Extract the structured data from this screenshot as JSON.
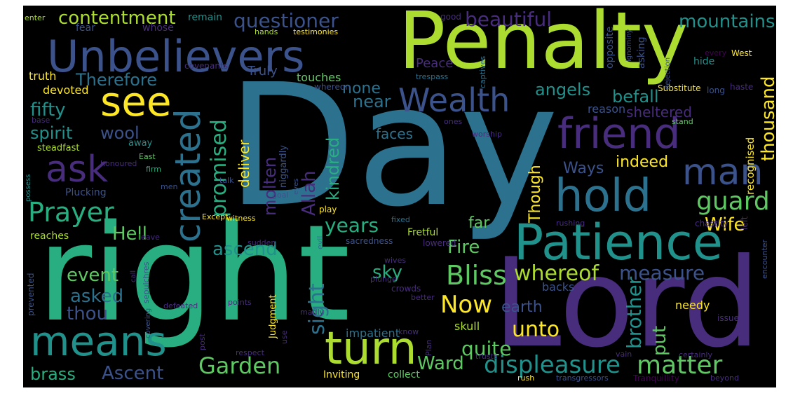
{
  "palette": {
    "background": "#000000",
    "frame": "#ffffff",
    "colors": [
      "#440154",
      "#472d7b",
      "#3b528b",
      "#2c728e",
      "#21918c",
      "#28ae80",
      "#5ec962",
      "#addc30",
      "#fde725"
    ]
  },
  "words": [
    "Day",
    "right",
    "Lord",
    "Penalty",
    "Unbelievers",
    "Patience",
    "hold",
    "friend",
    "turn",
    "means",
    "see",
    "ask",
    "Wealth",
    "created",
    "man",
    "Prayer",
    "displeasure",
    "matter",
    "Garden",
    "guard",
    "Bliss",
    "mountains",
    "thousand",
    "contentment",
    "questioner",
    "beautiful",
    "promised",
    "Allah",
    "Now",
    "whereof",
    "measure",
    "brother",
    "sight",
    "years",
    "quite",
    "unto",
    "Fire",
    "Hell",
    "ascend",
    "Ascent",
    "brass",
    "thou",
    "asked",
    "event",
    "sky",
    "earth",
    "put",
    "Ward",
    "fifty",
    "spirit",
    "wool",
    "angels",
    "befall",
    "sheltered",
    "none",
    "near",
    "kindred",
    "Therefore",
    "indeed",
    "Ways",
    "Though",
    "molten",
    "deliver",
    "Wife",
    "far",
    "faces",
    "truth",
    "devoted",
    "Peace",
    "Truly",
    "touches",
    "reason",
    "recognised",
    "skull",
    "needy",
    "backs",
    "impatient",
    "Inviting",
    "collect",
    "Judgment",
    "Fretful",
    "steadfast",
    "away",
    "Plucking",
    "reaches",
    "whose",
    "fear",
    "remain",
    "asking",
    "hide",
    "opposite",
    "niggardly",
    "good",
    "covenants",
    "hands",
    "testimonies",
    "enter",
    "base",
    "honoured",
    "possess",
    "East",
    "firm",
    "ones",
    "worship",
    "eyes",
    "stand",
    "Substitute",
    "haste",
    "long",
    "West",
    "every",
    "dejection",
    "ignominy",
    "captives",
    "trespass",
    "whereon",
    "talk",
    "men",
    "goal",
    "play",
    "left",
    "chastity",
    "rushing",
    "Except",
    "witness",
    "fixed",
    "evil",
    "sacredness",
    "lowered",
    "sudden",
    "leave",
    "call",
    "prevented",
    "sepulchres",
    "covering",
    "defeated",
    "points",
    "crowds",
    "plunge",
    "better",
    "wives",
    "madly",
    "use",
    "post",
    "respect",
    "know",
    "Plan",
    "trusts",
    "issue",
    "vain",
    "certainly",
    "encounter",
    "Tranquillity",
    "beyond",
    "transgressors",
    "rush"
  ]
}
